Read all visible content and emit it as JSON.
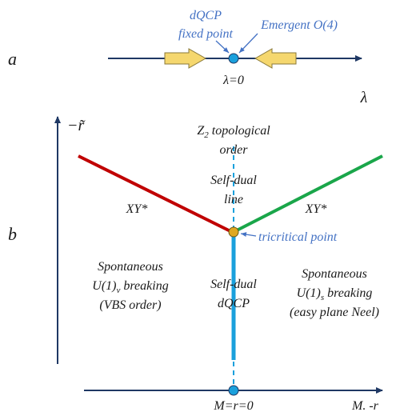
{
  "panel_a": {
    "label": "a",
    "axis_label": "λ",
    "point_label": "λ=0",
    "fixed_point_line1": "dQCP",
    "fixed_point_line2": "fixed point",
    "emergent_label": "Emergent O(4)"
  },
  "panel_b": {
    "label": "b",
    "y_axis_label": "−r̃",
    "x_axis_label": "M. -r",
    "origin_label": "M=r=0",
    "z2_line1": "Z",
    "z2_sub": "2",
    "z2_line1_rest": " topological",
    "z2_line2": "order",
    "self_dual_line1": "Self-dual",
    "self_dual_line2": "line",
    "xy_left": "XY*",
    "xy_right": "XY*",
    "tricritical_label": "tricritical point",
    "dqcp_line1": "Self-dual",
    "dqcp_line2": "dQCP",
    "left_phase_line1": "Spontaneous",
    "left_phase_line2_a": "U(1)",
    "left_phase_line2_sub": "v",
    "left_phase_line2_b": " breaking",
    "left_phase_line3": "(VBS order)",
    "right_phase_line1": "Spontaneous",
    "right_phase_line2_a": "U(1)",
    "right_phase_line2_sub": "s",
    "right_phase_line2_b": " breaking",
    "right_phase_line3": "(easy plane Neel)"
  },
  "colors": {
    "axis": "#1f3864",
    "red_line": "#c00000",
    "green_line": "#1aa64a",
    "blue_line": "#1aa0dc",
    "dot": "#1aa0dc",
    "tricritical_dot": "#e0a820",
    "arrow_fill": "#f5d76e",
    "arrow_stroke": "#8a7a3a",
    "annotation": "#4472c4"
  }
}
